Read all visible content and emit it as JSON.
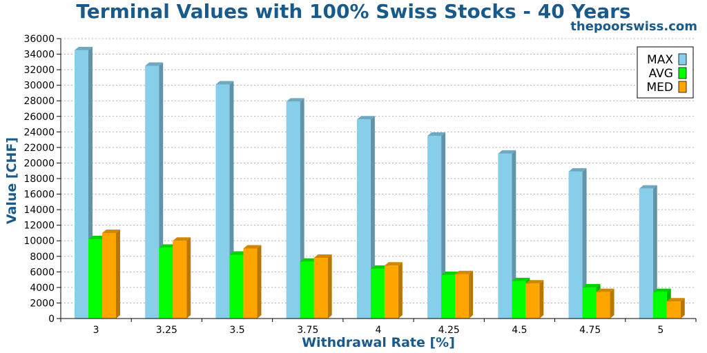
{
  "chart_data": {
    "type": "bar",
    "title": "Terminal Values with 100% Swiss Stocks - 40 Years",
    "watermark": "thepoorswiss.com",
    "xlabel": "Withdrawal Rate [%]",
    "ylabel": "Value [CHF]",
    "ylim": [
      0,
      36000
    ],
    "ytick_step": 2000,
    "grid": true,
    "legend_position": "top-right",
    "categories": [
      "3",
      "3.25",
      "3.5",
      "3.75",
      "4",
      "4.25",
      "4.5",
      "4.75",
      "5"
    ],
    "series": [
      {
        "name": "MAX",
        "color": "#87ceeb",
        "values": [
          34500,
          32500,
          30100,
          27900,
          25600,
          23500,
          21200,
          18900,
          16700
        ]
      },
      {
        "name": "AVG",
        "color": "#00ff00",
        "values": [
          10200,
          9100,
          8200,
          7300,
          6400,
          5600,
          4800,
          4000,
          3400
        ]
      },
      {
        "name": "MED",
        "color": "#ffa500",
        "values": [
          11000,
          10000,
          9000,
          7800,
          6800,
          5700,
          4500,
          3400,
          2200
        ]
      }
    ]
  }
}
